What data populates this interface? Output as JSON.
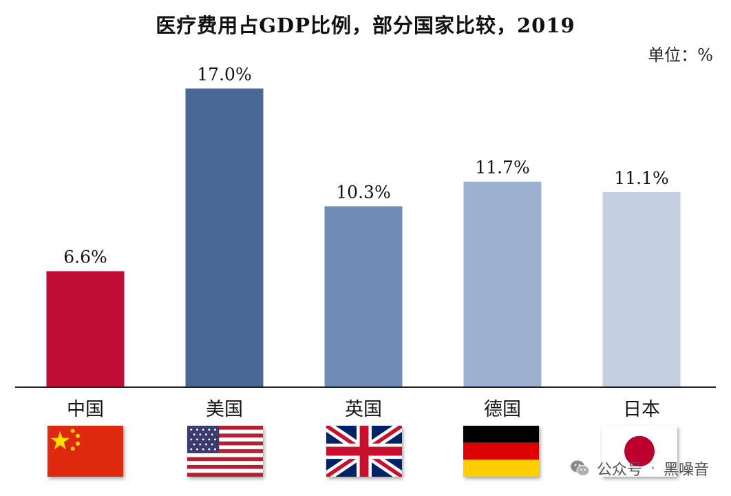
{
  "chart_data": {
    "type": "bar",
    "title": "医疗费用占GDP比例，部分国家比较，2019",
    "unit_label": "单位：%",
    "categories": [
      "中国",
      "美国",
      "英国",
      "德国",
      "日本"
    ],
    "values": [
      6.6,
      17.0,
      10.3,
      11.7,
      11.1
    ],
    "data_labels": [
      "6.6%",
      "17.0%",
      "10.3%",
      "11.7%",
      "11.1%"
    ],
    "bar_colors": [
      "#c00d36",
      "#4a6896",
      "#6f8cb6",
      "#9cb0d0",
      "#c4cfe2"
    ],
    "ylim": [
      0,
      20
    ],
    "grid": false,
    "xlabel": "",
    "ylabel": "",
    "flags": [
      "china-flag",
      "usa-flag",
      "uk-flag",
      "germany-flag",
      "japan-flag"
    ]
  },
  "watermark": {
    "platform": "公众号",
    "separator": "·",
    "account": "黑噪音",
    "icon": "wechat-icon"
  }
}
